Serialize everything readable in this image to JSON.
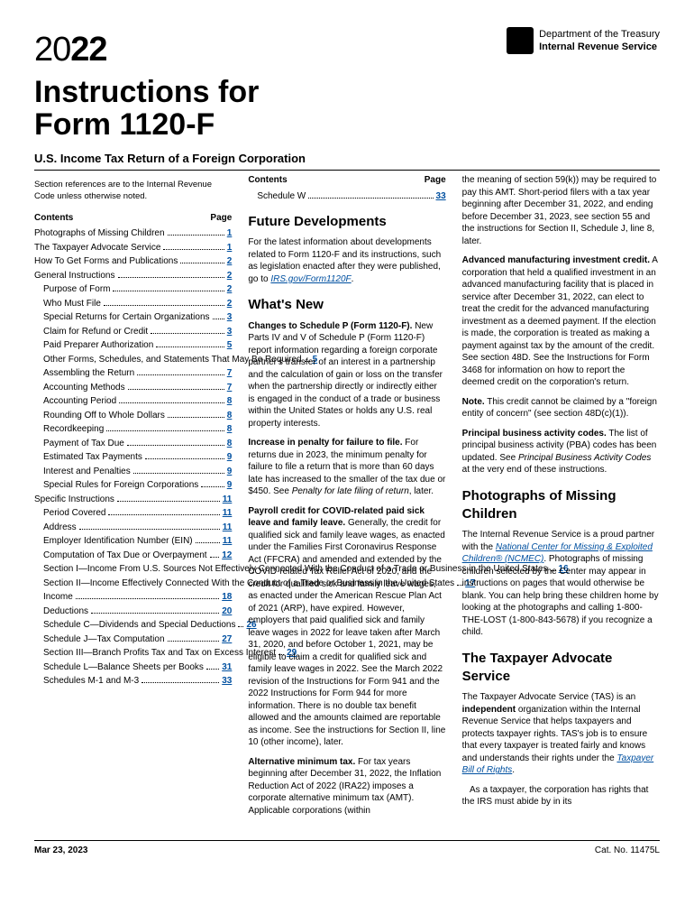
{
  "header": {
    "year_light": "20",
    "year_bold": "22",
    "dept_line1": "Department of the Treasury",
    "dept_line2": "Internal Revenue Service",
    "title_line1": "Instructions for",
    "title_line2": "Form 1120-F",
    "subtitle": "U.S. Income Tax Return of a Foreign Corporation",
    "section_note": "Section references are to the Internal Revenue Code unless otherwise noted."
  },
  "toc_heading_left": "Contents",
  "toc_heading_right": "Page",
  "toc_col1": [
    {
      "label": "Photographs of Missing Children",
      "page": "1",
      "indent": 0
    },
    {
      "label": "The Taxpayer Advocate Service",
      "page": "1",
      "indent": 0
    },
    {
      "label": "How To Get Forms and Publications",
      "page": "2",
      "indent": 0
    },
    {
      "label": "General Instructions",
      "page": "2",
      "indent": 0
    },
    {
      "label": "Purpose of Form",
      "page": "2",
      "indent": 1
    },
    {
      "label": "Who Must File",
      "page": "2",
      "indent": 1
    },
    {
      "label": "Special Returns for Certain Organizations",
      "page": "3",
      "indent": 1
    },
    {
      "label": "Claim for Refund or Credit",
      "page": "3",
      "indent": 1
    },
    {
      "label": "Paid Preparer Authorization",
      "page": "5",
      "indent": 1
    },
    {
      "label": "Other Forms, Schedules, and Statements That May Be Required",
      "page": "5",
      "indent": 1
    },
    {
      "label": "Assembling the Return",
      "page": "7",
      "indent": 1
    },
    {
      "label": "Accounting Methods",
      "page": "7",
      "indent": 1
    },
    {
      "label": "Accounting Period",
      "page": "8",
      "indent": 1
    },
    {
      "label": "Rounding Off to Whole Dollars",
      "page": "8",
      "indent": 1
    },
    {
      "label": "Recordkeeping",
      "page": "8",
      "indent": 1
    },
    {
      "label": "Payment of Tax Due",
      "page": "8",
      "indent": 1
    },
    {
      "label": "Estimated Tax Payments",
      "page": "9",
      "indent": 1
    },
    {
      "label": "Interest and Penalties",
      "page": "9",
      "indent": 1
    },
    {
      "label": "Special Rules for Foreign Corporations",
      "page": "9",
      "indent": 1
    },
    {
      "label": "Specific Instructions",
      "page": "11",
      "indent": 0
    },
    {
      "label": "Period Covered",
      "page": "11",
      "indent": 1
    },
    {
      "label": "Address",
      "page": "11",
      "indent": 1
    },
    {
      "label": "Employer Identification Number (EIN)",
      "page": "11",
      "indent": 1
    },
    {
      "label": "Computation of Tax Due or Overpayment",
      "page": "12",
      "indent": 1
    },
    {
      "label": "Section I—Income From U.S. Sources Not Effectively Connected With the Conduct of a Trade or Business in the United States",
      "page": "16",
      "indent": 1
    },
    {
      "label": "Section II—Income Effectively Connected With the Conduct of a Trade or Business in the United States",
      "page": "17",
      "indent": 1
    },
    {
      "label": "Income",
      "page": "18",
      "indent": 1
    },
    {
      "label": "Deductions",
      "page": "20",
      "indent": 1
    },
    {
      "label": "Schedule C—Dividends and Special Deductions",
      "page": "26",
      "indent": 1
    },
    {
      "label": "Schedule J—Tax Computation",
      "page": "27",
      "indent": 1
    },
    {
      "label": "Section III—Branch Profits Tax and Tax on Excess Interest",
      "page": "29",
      "indent": 1
    },
    {
      "label": "Schedule L—Balance Sheets per Books",
      "page": "31",
      "indent": 1
    },
    {
      "label": "Schedules M-1 and M-3",
      "page": "33",
      "indent": 1
    }
  ],
  "toc_col2": [
    {
      "label": "Schedule W",
      "page": "33",
      "indent": 1
    }
  ],
  "col2": {
    "h_future": "Future Developments",
    "p_future": "For the latest information about developments related to Form 1120-F and its instructions, such as legislation enacted after they were published, go to ",
    "link_future": "IRS.gov/Form1120F",
    "h_whatsnew": "What's New",
    "p_schedp_head": "Changes to Schedule P (Form 1120-F).",
    "p_schedp": " New Parts IV and V of Schedule P (Form 1120-F) report information regarding a foreign corporate partner's transfer of an interest in a partnership and the calculation of gain or loss on the transfer when the partnership directly or indirectly either is engaged in the conduct of a trade or business within the United States or holds any U.S. real property interests.",
    "p_penalty_head": "Increase in penalty for failure to file.",
    "p_penalty": " For returns due in 2023, the minimum penalty for failure to file a return that is more than 60 days late has increased to the smaller of the tax due or $450. See ",
    "p_penalty_italic": "Penalty for late filing of return",
    "p_penalty_tail": ", later.",
    "p_payroll_head": "Payroll credit for COVID-related paid sick leave and family leave.",
    "p_payroll": " Generally, the credit for qualified sick and family leave wages, as enacted under the Families First Coronavirus Response Act (FFCRA) and amended and extended by the COVID-related Tax Relief Act of 2020, and the credit for qualified sick and family leave wages, as enacted under the American Rescue Plan Act of 2021 (ARP), have expired. However, employers that paid qualified sick and family leave wages in 2022 for leave taken after March 31, 2020, and before October 1, 2021, may be eligible to claim a credit for qualified sick and family leave wages in 2022. See the March 2022 revision of the Instructions for Form 941 and the 2022 Instructions for Form 944 for more information. There is no double tax benefit allowed and the amounts claimed are reportable as income. See the instructions for Section II, line 10 (other income), later.",
    "p_amt_head": "Alternative minimum tax.",
    "p_amt": " For tax years beginning after December 31, 2022, the Inflation Reduction Act of 2022 (IRA22) imposes a corporate alternative minimum tax (AMT). Applicable corporations (within"
  },
  "col3": {
    "p_cont1": "the meaning of section 59(k)) may be required to pay this AMT. Short-period filers with a tax year beginning after December 31, 2022, and ending before December 31, 2023, see section 55 and the instructions for Section II, Schedule J, line 8, later.",
    "p_amic_head": "Advanced manufacturing investment credit.",
    "p_amic": " A corporation that held a qualified investment in an advanced manufacturing facility that is placed in service after December 31, 2022, can elect to treat the credit for the advanced manufacturing investment as a deemed payment. If the election is made, the corporation is treated as making a payment against tax by the amount of the credit. See section 48D. See the Instructions for Form 3468 for information on how to report the deemed credit on the corporation's return.",
    "p_note_head": "Note.",
    "p_note": " This credit cannot be claimed by a \"foreign entity of concern\" (see section 48D(c)(1)).",
    "p_pba_head": "Principal business activity codes.",
    "p_pba": " The list of principal business activity (PBA) codes has been updated. See ",
    "p_pba_italic": "Principal Business Activity Codes",
    "p_pba_tail": " at the very end of these instructions.",
    "h_photos": "Photographs of Missing Children",
    "p_photos1": "The Internal Revenue Service is a proud partner with the ",
    "link_ncmec": "National Center for Missing & Exploited Children® (NCMEC)",
    "p_photos2": ". Photographs of missing children selected by the Center may appear in instructions on pages that would otherwise be blank. You can help bring these children home by looking at the photographs and calling 1-800-THE-LOST (1-800-843-5678) if you recognize a child.",
    "h_tas": "The Taxpayer Advocate Service",
    "p_tas1a": "The Taxpayer Advocate Service (TAS) is an ",
    "p_tas1b": "independent",
    "p_tas1c": " organization within the Internal Revenue Service that helps taxpayers and protects taxpayer rights. TAS's job is to ensure that every taxpayer is treated fairly and knows and understands their rights under the ",
    "link_tbor": "Taxpayer Bill of Rights",
    "p_tas2": "As a taxpayer, the corporation has rights that the IRS must abide by in its"
  },
  "footer": {
    "date": "Mar 23, 2023",
    "cat": "Cat. No. 11475L"
  }
}
